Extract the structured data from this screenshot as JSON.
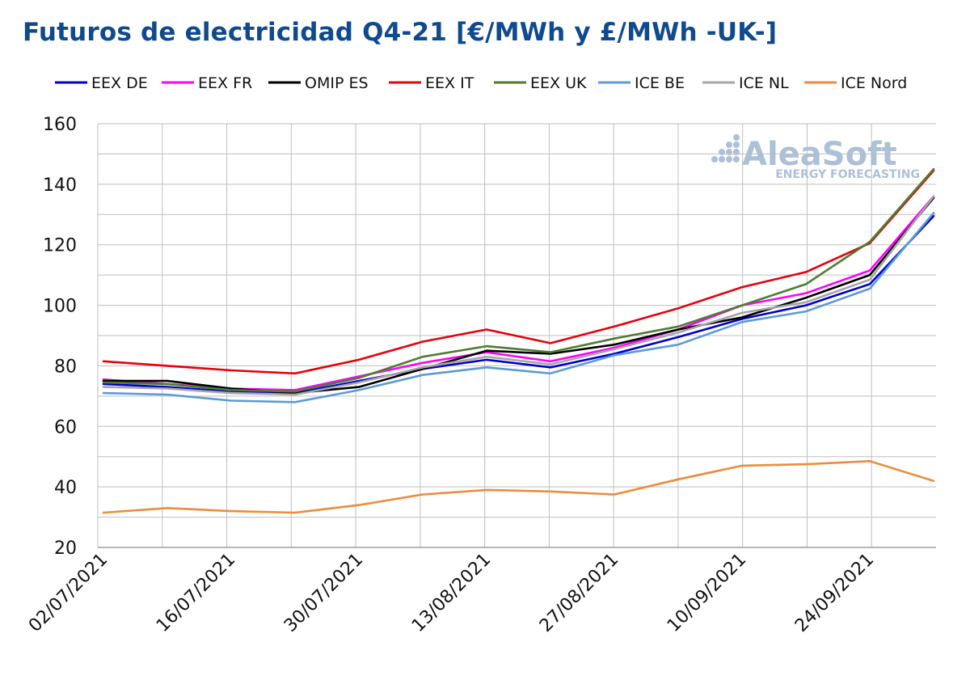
{
  "chart_data": {
    "type": "line",
    "title": "Futuros de electricidad Q4-21 [€/MWh y £/MWh -UK-]",
    "xlabel": "",
    "ylabel": "",
    "ylim": [
      20,
      160
    ],
    "yticks": [
      20,
      40,
      60,
      80,
      100,
      120,
      140,
      160
    ],
    "x": [
      "02/07/2021",
      "09/07/2021",
      "16/07/2021",
      "23/07/2021",
      "30/07/2021",
      "06/08/2021",
      "13/08/2021",
      "20/08/2021",
      "27/08/2021",
      "03/09/2021",
      "10/09/2021",
      "17/09/2021",
      "24/09/2021",
      "30/09/2021"
    ],
    "xtick_labels": [
      "02/07/2021",
      "16/07/2021",
      "30/07/2021",
      "13/08/2021",
      "27/08/2021",
      "10/09/2021",
      "24/09/2021"
    ],
    "grid": true,
    "legend_position": "top",
    "series": [
      {
        "name": "EEX DE",
        "color": "#0000cc",
        "values": [
          74.0,
          73.0,
          71.5,
          71.0,
          75.0,
          79.0,
          82.0,
          79.5,
          84.0,
          89.5,
          95.5,
          100.0,
          107.0,
          129.5
        ]
      },
      {
        "name": "EEX FR",
        "color": "#ff00ff",
        "values": [
          75.5,
          74.0,
          72.5,
          72.0,
          76.5,
          81.0,
          84.5,
          81.5,
          86.0,
          92.0,
          100.0,
          104.0,
          111.5,
          136.0
        ]
      },
      {
        "name": "OMIP ES",
        "color": "#000000",
        "values": [
          75.0,
          75.0,
          72.5,
          71.0,
          73.0,
          79.0,
          85.0,
          84.0,
          87.0,
          92.0,
          96.0,
          102.5,
          110.0,
          135.5
        ]
      },
      {
        "name": "EEX IT",
        "color": "#e8000b",
        "values": [
          81.5,
          80.0,
          78.5,
          77.5,
          82.0,
          88.0,
          92.0,
          87.5,
          93.0,
          99.0,
          106.0,
          111.0,
          120.5,
          144.5
        ]
      },
      {
        "name": "EEX UK",
        "color": "#4f7c32",
        "values": [
          74.5,
          74.0,
          72.0,
          71.5,
          76.0,
          83.0,
          86.5,
          84.5,
          89.0,
          93.0,
          100.0,
          107.0,
          121.0,
          145.0
        ]
      },
      {
        "name": "ICE BE",
        "color": "#5b9bd5",
        "values": [
          71.0,
          70.5,
          68.5,
          68.0,
          72.0,
          77.0,
          79.5,
          77.5,
          83.5,
          87.0,
          94.5,
          98.0,
          105.5,
          130.5
        ]
      },
      {
        "name": "ICE NL",
        "color": "#a6a6a6",
        "values": [
          73.0,
          72.5,
          71.0,
          70.5,
          74.5,
          79.5,
          83.0,
          80.5,
          85.5,
          91.0,
          97.5,
          101.0,
          108.5,
          136.0
        ]
      },
      {
        "name": "ICE Nord",
        "color": "#ed8c3a",
        "values": [
          31.5,
          33.0,
          32.0,
          31.5,
          34.0,
          37.5,
          39.0,
          38.5,
          37.5,
          42.5,
          47.0,
          47.5,
          48.5,
          42.0
        ]
      }
    ]
  },
  "watermark": {
    "brand": "AleaSoft",
    "tagline": "ENERGY FORECASTING"
  }
}
